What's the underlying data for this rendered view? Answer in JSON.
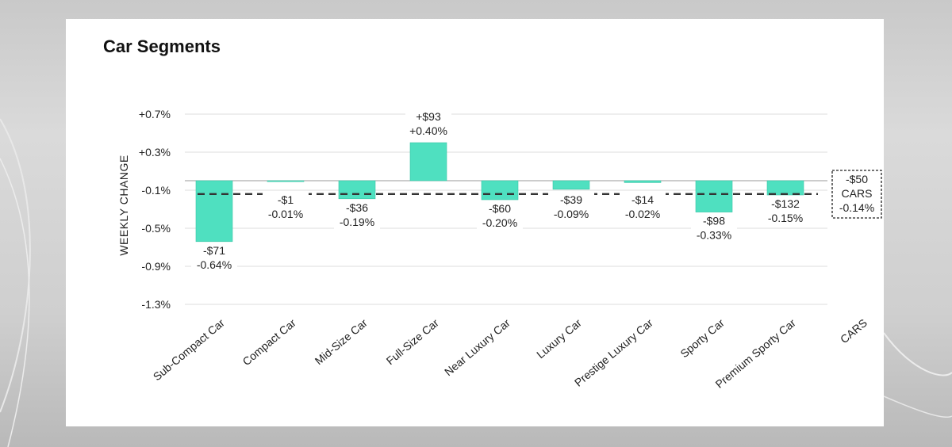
{
  "title": "Car Segments",
  "chart_data": {
    "type": "bar",
    "title": "Car Segments",
    "ylabel": "WEEKLY CHANGE",
    "xlabel": "",
    "ylim": [
      -1.3,
      0.7
    ],
    "yticks": [
      "+0.7%",
      "+0.3%",
      "-0.1%",
      "-0.5%",
      "-0.9%",
      "-1.3%"
    ],
    "ytick_values": [
      0.7,
      0.3,
      -0.1,
      -0.5,
      -0.9,
      -1.3
    ],
    "grid": true,
    "categories": [
      "Sub-Compact Car",
      "Compact Car",
      "Mid-Size Car",
      "Full-Size Car",
      "Near Luxury Car",
      "Luxury Car",
      "Prestige Luxury Car",
      "Sporty Car",
      "Premium Sporty Car",
      "CARS"
    ],
    "values": [
      -0.64,
      -0.01,
      -0.19,
      0.4,
      -0.2,
      -0.09,
      -0.02,
      -0.33,
      -0.15,
      -0.14
    ],
    "dollar_labels": [
      "-$71",
      "-$1",
      "-$36",
      "+$93",
      "-$60",
      "-$39",
      "-$14",
      "-$98",
      "-$132",
      "-$50"
    ],
    "pct_labels": [
      "-0.64%",
      "-0.01%",
      "-0.19%",
      "+0.40%",
      "-0.20%",
      "-0.09%",
      "-0.02%",
      "-0.33%",
      "-0.15%",
      "-0.14%"
    ],
    "summary": {
      "category": "CARS",
      "dollar": "-$50",
      "label": "CARS",
      "pct": "-0.14%",
      "value": -0.14
    },
    "average_line": -0.14,
    "bar_color": "#4fe0c0"
  }
}
